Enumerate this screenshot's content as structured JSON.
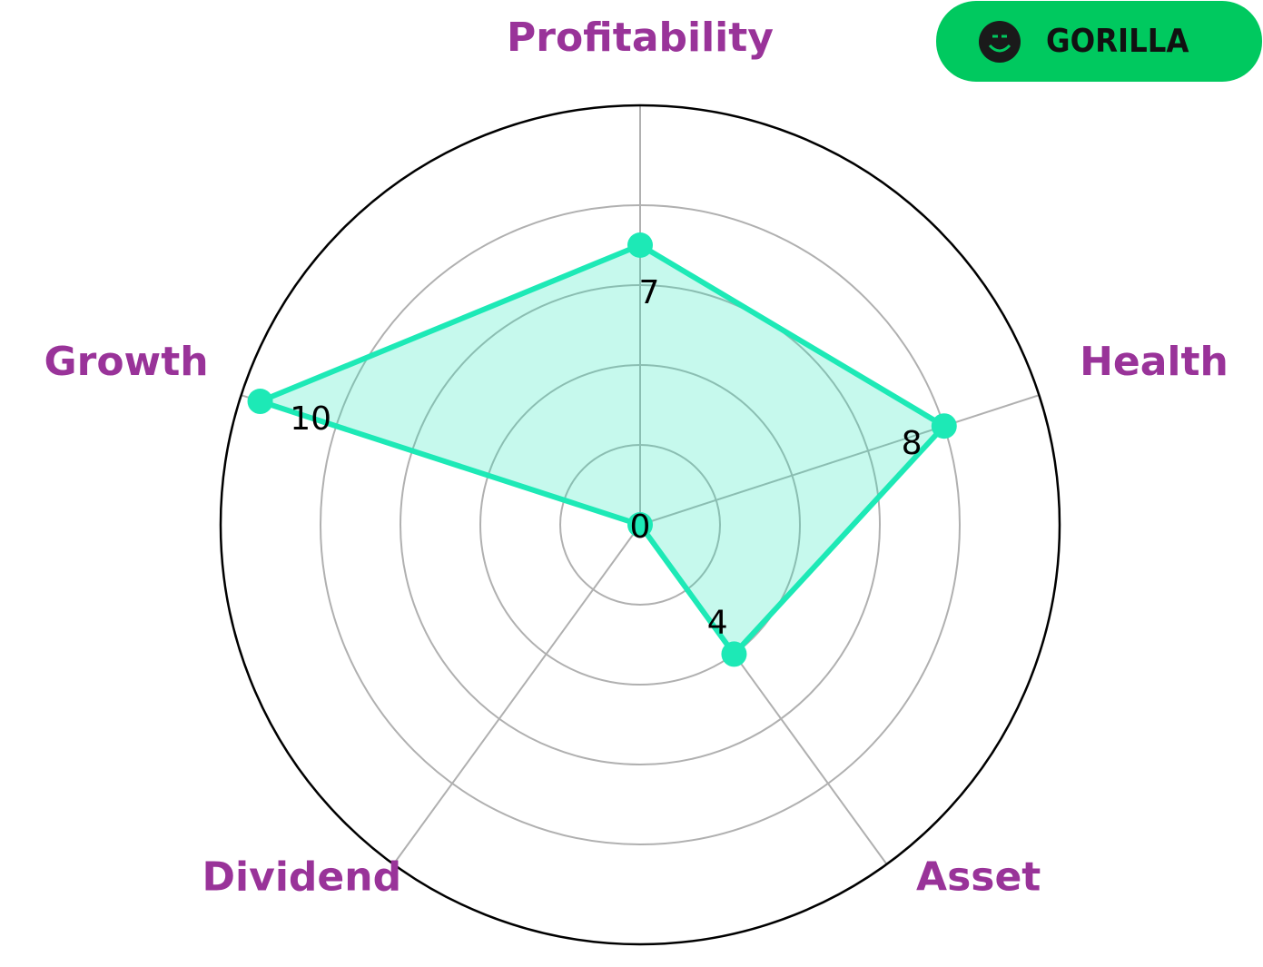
{
  "chart_data": {
    "type": "radar",
    "categories": [
      "Profitability",
      "Health",
      "Asset",
      "Dividend",
      "Growth"
    ],
    "values": [
      7,
      8,
      4,
      0,
      10
    ],
    "color": "#1de9b6",
    "ylim": [
      0,
      10.5
    ],
    "yticks": [
      2,
      4,
      6,
      8
    ],
    "grid": true
  },
  "logo": "GORILLA"
}
